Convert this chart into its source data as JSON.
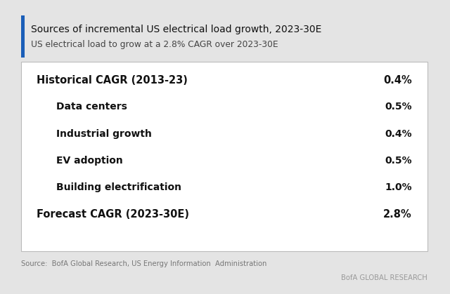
{
  "title_line1": "Sources of incremental US electrical load growth, 2023-30E",
  "title_line2": "US electrical load to grow at a 2.8% CAGR over 2023-30E",
  "table_rows": [
    {
      "label": "Historical CAGR (2013-23)",
      "value": "0.4%",
      "bold": true,
      "indent": false
    },
    {
      "label": "Data centers",
      "value": "0.5%",
      "bold": true,
      "indent": true
    },
    {
      "label": "Industrial growth",
      "value": "0.4%",
      "bold": true,
      "indent": true
    },
    {
      "label": "EV adoption",
      "value": "0.5%",
      "bold": true,
      "indent": true
    },
    {
      "label": "Building electrification",
      "value": "1.0%",
      "bold": true,
      "indent": true
    },
    {
      "label": "Forecast CAGR (2023-30E)",
      "value": "2.8%",
      "bold": true,
      "indent": false
    }
  ],
  "source_text": "Source:  BofA Global Research, US Energy Information  Administration",
  "brand_text": "BofA GLOBAL RESEARCH",
  "bg_color": "#e4e4e4",
  "table_bg_color": "#ffffff",
  "title_color": "#111111",
  "subtitle_color": "#444444",
  "accent_bar_color": "#1a5eb8",
  "table_label_color": "#111111",
  "table_value_color": "#111111",
  "source_color": "#777777",
  "brand_color": "#999999",
  "title_fontsize": 10.0,
  "subtitle_fontsize": 8.8,
  "row_fontsize_main": 10.5,
  "row_fontsize_indent": 10.0,
  "source_fontsize": 7.2,
  "brand_fontsize": 7.2
}
